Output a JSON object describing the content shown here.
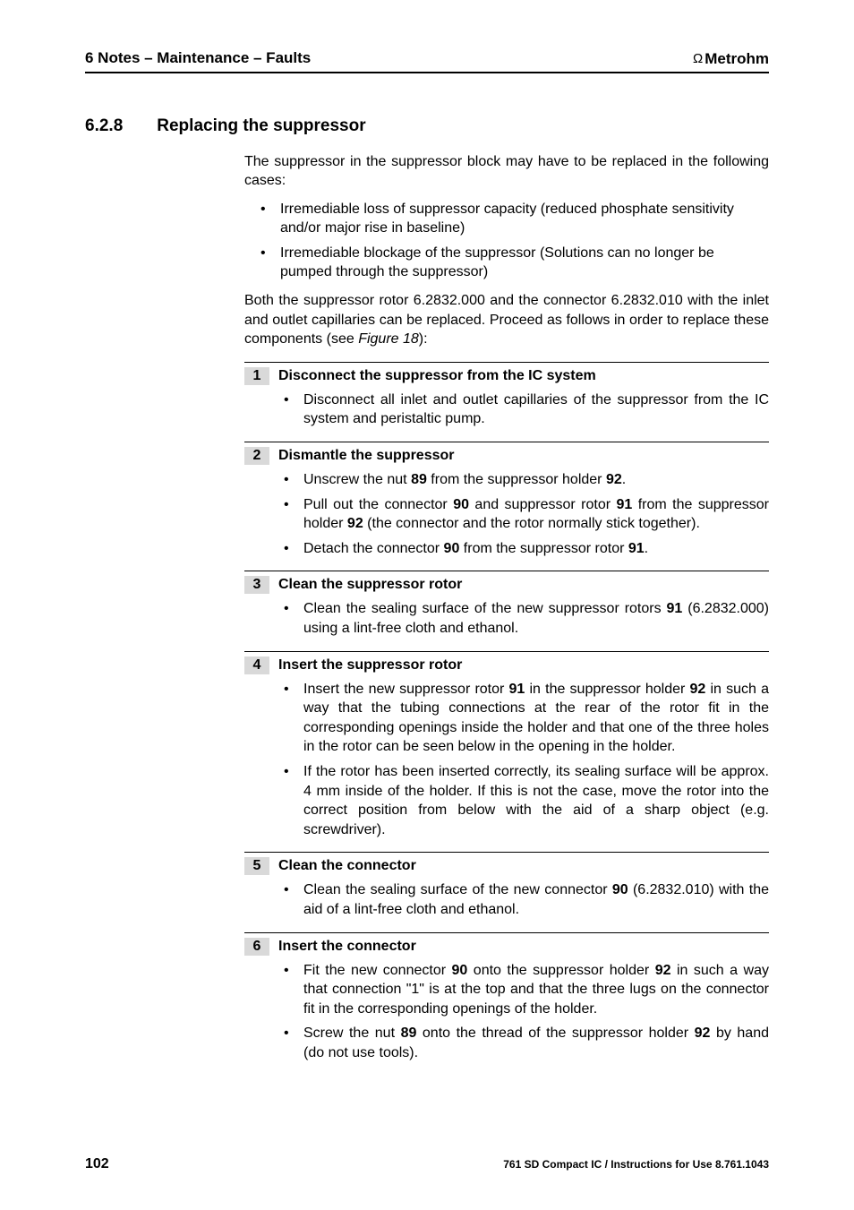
{
  "header": {
    "left": "6 Notes – Maintenance – Faults",
    "brand_prefix": "Ω",
    "brand": "Metrohm"
  },
  "section": {
    "number": "6.2.8",
    "title": "Replacing the suppressor"
  },
  "intro": {
    "p1": "The suppressor in the suppressor block may have to be replaced in the following cases:",
    "bullets": [
      "Irremediable loss of suppressor capacity (reduced phosphate sensitivity and/or major rise in baseline)",
      "Irremediable blockage of the suppressor (Solutions can no longer be pumped through the suppressor)"
    ],
    "p2_a": "Both the suppressor rotor 6.2832.000 and the connector 6.2832.010 with the inlet and outlet capillaries can be replaced. Proceed as follows in order to replace these components (see ",
    "p2_fig": "Figure 18",
    "p2_b": "):"
  },
  "refs": {
    "r89": "89",
    "r90": "90",
    "r91": "91",
    "r92": "92"
  },
  "steps": [
    {
      "num": "1",
      "title": "Disconnect the suppressor from the IC system",
      "items": [
        {
          "html": "Disconnect all inlet and outlet capillaries of the suppressor from the IC system and peristaltic pump."
        }
      ]
    },
    {
      "num": "2",
      "title": "Dismantle the suppressor",
      "items": [
        {
          "html": "Unscrew the nut <span class=\"b\">89</span> from the suppressor holder <span class=\"b\">92</span>."
        },
        {
          "html": "Pull out the connector <span class=\"b\">90</span> and suppressor rotor <span class=\"b\">91</span> from the suppressor holder <span class=\"b\">92</span> (the connector and the rotor normally stick together)."
        },
        {
          "html": "Detach the connector <span class=\"b\">90</span> from the suppressor rotor <span class=\"b\">91</span>."
        }
      ]
    },
    {
      "num": "3",
      "title": "Clean the suppressor rotor",
      "items": [
        {
          "html": "Clean the sealing surface of the new suppressor rotors <span class=\"b\">91</span> (6.2832.000) using a lint-free cloth and ethanol."
        }
      ]
    },
    {
      "num": "4",
      "title": "Insert the suppressor rotor",
      "items": [
        {
          "html": "Insert the new suppressor rotor <span class=\"b\">91</span> in the suppressor holder <span class=\"b\">92</span> in such a way that the tubing connections at the rear of the rotor fit in the corresponding openings inside the holder and that one of the three holes in the rotor can be seen below in the opening in the holder."
        },
        {
          "html": "If the rotor has been inserted correctly, its sealing surface will be approx. 4 mm inside of the holder. If this is not the case, move the rotor into the correct position from below with the aid of a sharp object (e.g. screwdriver)."
        }
      ]
    },
    {
      "num": "5",
      "title": "Clean the connector",
      "items": [
        {
          "html": "Clean the sealing surface of the new connector <span class=\"b\">90</span> (6.2832.010) with the aid of a lint-free cloth and ethanol."
        }
      ]
    },
    {
      "num": "6",
      "title": "Insert the connector",
      "items": [
        {
          "html": "Fit the new connector <span class=\"b\">90</span> onto the suppressor holder <span class=\"b\">92</span> in such a way that connection \"1\" is at the top and that the three lugs on the connector fit in the corresponding openings of the holder."
        },
        {
          "html": "Screw the nut <span class=\"b\">89</span> onto the thread of the suppressor holder <span class=\"b\">92</span> by hand (do not use tools)."
        }
      ]
    }
  ],
  "footer": {
    "page": "102",
    "text": "761 SD Compact IC / Instructions for Use  8.761.1043"
  }
}
